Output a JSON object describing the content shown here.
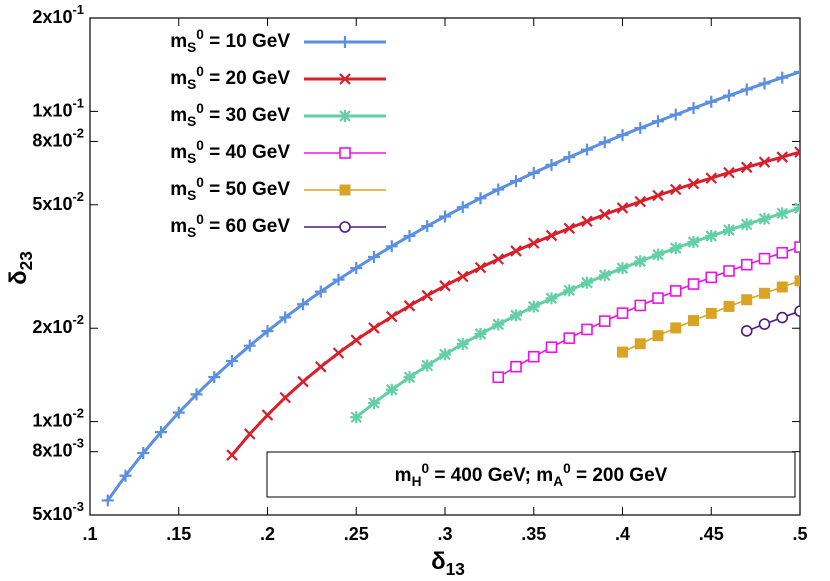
{
  "chart_data": {
    "type": "line",
    "ylog": true,
    "x_label": "δ13",
    "y_label": "δ23",
    "annotation": "mH0 = 400 GeV; mA0 = 200 GeV",
    "xlim": [
      0.1,
      0.5
    ],
    "ylim": [
      0.005,
      0.2
    ],
    "xticks": [
      {
        "value": 0.1,
        "label": ".1"
      },
      {
        "value": 0.15,
        "label": ".15"
      },
      {
        "value": 0.2,
        "label": ".2"
      },
      {
        "value": 0.25,
        "label": ".25"
      },
      {
        "value": 0.3,
        "label": ".3"
      },
      {
        "value": 0.35,
        "label": ".35"
      },
      {
        "value": 0.4,
        "label": ".4"
      },
      {
        "value": 0.45,
        "label": ".45"
      },
      {
        "value": 0.5,
        "label": ".5"
      }
    ],
    "yticks": [
      {
        "value": 0.2,
        "label": "2x10-1"
      },
      {
        "value": 0.1,
        "label": "1x10-1"
      },
      {
        "value": 0.08,
        "label": "8x10-2"
      },
      {
        "value": 0.05,
        "label": "5x10-2"
      },
      {
        "value": 0.02,
        "label": "2x10-2"
      },
      {
        "value": 0.01,
        "label": "1x10-2"
      },
      {
        "value": 0.008,
        "label": "8x10-3"
      },
      {
        "value": 0.005,
        "label": "5x10-3"
      }
    ],
    "legend": "upper left",
    "series": [
      {
        "name": "mS0 = 10 GeV",
        "color": "#5b8fe0",
        "marker": "plus",
        "x": [
          0.11,
          0.12,
          0.13,
          0.14,
          0.15,
          0.16,
          0.17,
          0.18,
          0.19,
          0.2,
          0.21,
          0.22,
          0.23,
          0.24,
          0.25,
          0.26,
          0.27,
          0.28,
          0.29,
          0.3,
          0.31,
          0.32,
          0.33,
          0.34,
          0.35,
          0.36,
          0.37,
          0.38,
          0.39,
          0.4,
          0.41,
          0.42,
          0.43,
          0.44,
          0.45,
          0.46,
          0.47,
          0.48,
          0.49,
          0.5
        ],
        "values": [
          0.00557,
          0.00669,
          0.00792,
          0.00925,
          0.01069,
          0.01224,
          0.01391,
          0.01568,
          0.01757,
          0.01957,
          0.02168,
          0.0239,
          0.02624,
          0.02869,
          0.03126,
          0.03394,
          0.03674,
          0.03965,
          0.04269,
          0.04584,
          0.0491,
          0.05249,
          0.05599,
          0.05962,
          0.06336,
          0.06723,
          0.07121,
          0.07531,
          0.07953,
          0.08388,
          0.08834,
          0.09293,
          0.09763,
          0.10246,
          0.1074,
          0.11248,
          0.11768,
          0.12299,
          0.12845,
          0.134
        ]
      },
      {
        "name": "mS0 = 20 GeV",
        "color": "#d8202c",
        "marker": "cross",
        "x": [
          0.18,
          0.19,
          0.2,
          0.21,
          0.22,
          0.23,
          0.24,
          0.25,
          0.26,
          0.27,
          0.28,
          0.29,
          0.3,
          0.31,
          0.32,
          0.33,
          0.34,
          0.35,
          0.36,
          0.37,
          0.38,
          0.39,
          0.4,
          0.41,
          0.42,
          0.43,
          0.44,
          0.45,
          0.46,
          0.47,
          0.48,
          0.49,
          0.5
        ],
        "values": [
          0.0078,
          0.00912,
          0.0105,
          0.01195,
          0.01346,
          0.01502,
          0.01664,
          0.01831,
          0.02003,
          0.0218,
          0.02362,
          0.02549,
          0.0274,
          0.02936,
          0.03136,
          0.0334,
          0.03549,
          0.03762,
          0.03978,
          0.04199,
          0.04423,
          0.04651,
          0.04883,
          0.05118,
          0.05357,
          0.056,
          0.05846,
          0.06095,
          0.06348,
          0.06604,
          0.06863,
          0.07126,
          0.07391
        ]
      },
      {
        "name": "mS0 = 30 GeV",
        "color": "#62cfa4",
        "marker": "star",
        "x": [
          0.25,
          0.26,
          0.27,
          0.28,
          0.29,
          0.3,
          0.31,
          0.32,
          0.33,
          0.34,
          0.35,
          0.36,
          0.37,
          0.38,
          0.39,
          0.4,
          0.41,
          0.42,
          0.43,
          0.44,
          0.45,
          0.46,
          0.47,
          0.48,
          0.49,
          0.5
        ],
        "values": [
          0.01033,
          0.01148,
          0.01267,
          0.0139,
          0.01517,
          0.01647,
          0.0178,
          0.01917,
          0.02057,
          0.02201,
          0.02347,
          0.02496,
          0.02649,
          0.02804,
          0.02962,
          0.03123,
          0.03287,
          0.03453,
          0.03622,
          0.03794,
          0.03968,
          0.04145,
          0.04324,
          0.04506,
          0.0469,
          0.04877
        ]
      },
      {
        "name": "mS0 = 40 GeV",
        "color": "#ee10e8",
        "marker": "square-open",
        "x": [
          0.33,
          0.34,
          0.35,
          0.36,
          0.37,
          0.38,
          0.39,
          0.4,
          0.41,
          0.42,
          0.43,
          0.44,
          0.45,
          0.46,
          0.47,
          0.48,
          0.49,
          0.5
        ],
        "values": [
          0.0139,
          0.01503,
          0.01619,
          0.01737,
          0.01858,
          0.01982,
          0.02108,
          0.02237,
          0.02368,
          0.02501,
          0.02638,
          0.02776,
          0.02917,
          0.03059,
          0.03205,
          0.03352,
          0.03501,
          0.03653
        ]
      },
      {
        "name": "mS0 = 50 GeV",
        "color": "#d9a424",
        "marker": "square",
        "x": [
          0.4,
          0.41,
          0.42,
          0.43,
          0.44,
          0.45,
          0.46,
          0.47,
          0.48,
          0.49,
          0.5
        ],
        "values": [
          0.01675,
          0.01782,
          0.01892,
          0.02004,
          0.02117,
          0.02233,
          0.02351,
          0.02471,
          0.02592,
          0.02716,
          0.02842
        ]
      },
      {
        "name": "mS0 = 60 GeV",
        "color": "#4f1888",
        "marker": "circle-open",
        "x": [
          0.47,
          0.48,
          0.49,
          0.5
        ],
        "values": [
          0.0196,
          0.02062,
          0.02165,
          0.0227
        ]
      }
    ]
  }
}
